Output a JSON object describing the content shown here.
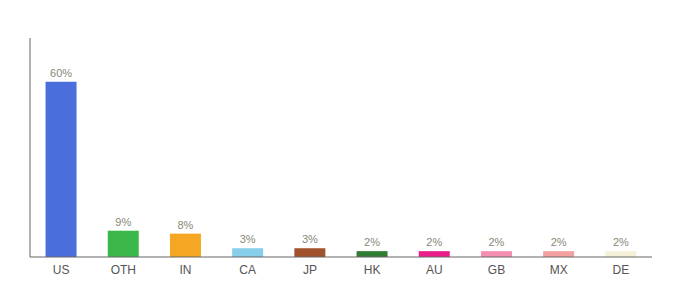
{
  "chart_data": {
    "type": "bar",
    "categories": [
      "US",
      "OTH",
      "IN",
      "CA",
      "JP",
      "HK",
      "AU",
      "GB",
      "MX",
      "DE"
    ],
    "values": [
      60,
      9,
      8,
      3,
      3,
      2,
      2,
      2,
      2,
      2
    ],
    "value_labels": [
      "60%",
      "9%",
      "8%",
      "3%",
      "3%",
      "2%",
      "2%",
      "2%",
      "2%",
      "2%"
    ],
    "colors": [
      "#4a6fdc",
      "#3cb84a",
      "#f5a623",
      "#87ceeb",
      "#a0522d",
      "#2e7d32",
      "#e91e8c",
      "#f48fb1",
      "#f4a0a0",
      "#f5f0d8"
    ],
    "ylim": [
      0,
      75
    ],
    "data_labels": true,
    "tick_labels": "x",
    "grid": false
  }
}
